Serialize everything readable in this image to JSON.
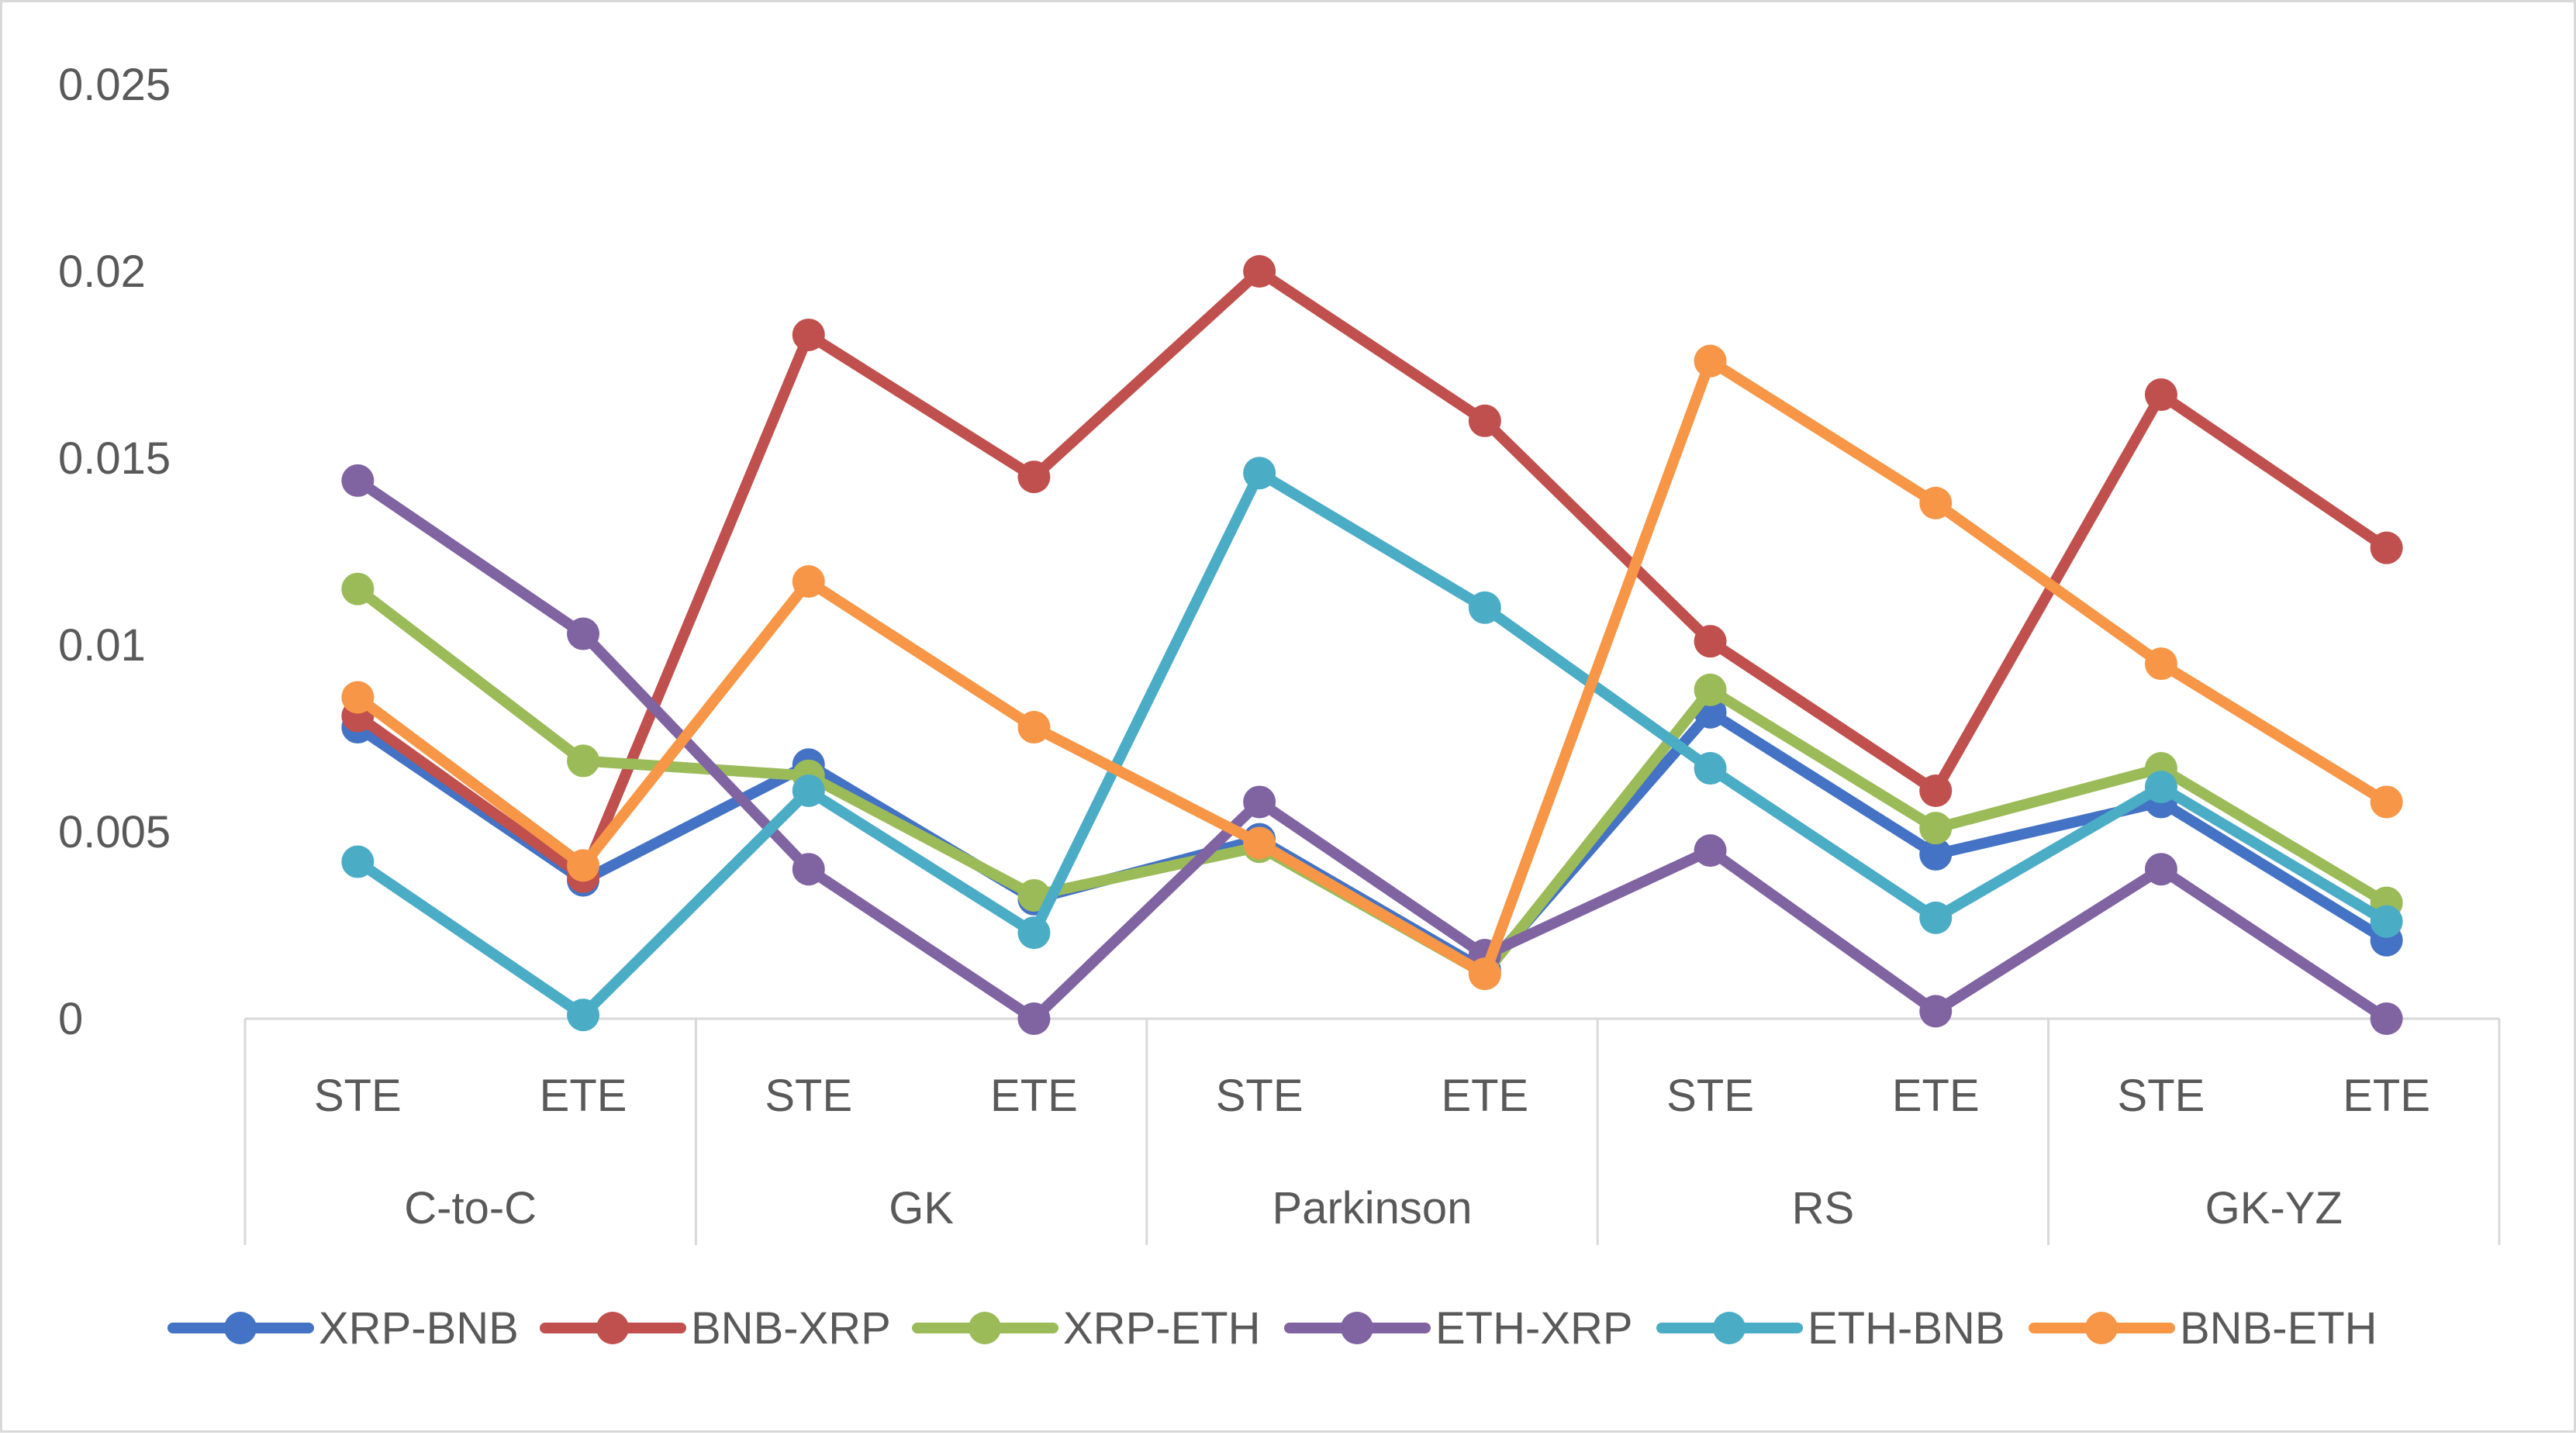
{
  "chart_data": {
    "type": "line",
    "title": "",
    "xlabel": "",
    "ylabel": "",
    "ylim": [
      0,
      0.025
    ],
    "yticks": [
      0,
      0.005,
      0.01,
      0.015,
      0.02,
      0.025
    ],
    "ytick_labels": [
      "0",
      "0.005",
      "0.01",
      "0.015",
      "0.02",
      "0.025"
    ],
    "grid": false,
    "legend_position": "bottom",
    "groups": [
      "C-to-C",
      "GK",
      "Parkinson",
      "RS",
      "GK-YZ"
    ],
    "subcategories": [
      "STE",
      "ETE"
    ],
    "categories": [
      "STE",
      "ETE",
      "STE",
      "ETE",
      "STE",
      "ETE",
      "STE",
      "ETE",
      "STE",
      "ETE"
    ],
    "series": [
      {
        "name": "XRP-BNB",
        "color": "#4472c4",
        "values": [
          0.0078,
          0.0037,
          0.0068,
          0.0032,
          0.0048,
          0.0013,
          0.0082,
          0.0044,
          0.0058,
          0.0021
        ]
      },
      {
        "name": "BNB-XRP",
        "color": "#c0504d",
        "values": [
          0.0081,
          0.0038,
          0.0183,
          0.0145,
          0.02,
          0.016,
          0.0101,
          0.0061,
          0.0167,
          0.0126
        ]
      },
      {
        "name": "XRP-ETH",
        "color": "#9bbb59",
        "values": [
          0.0115,
          0.0069,
          0.0065,
          0.0033,
          0.0046,
          0.0012,
          0.0088,
          0.0051,
          0.0067,
          0.0031
        ]
      },
      {
        "name": "ETH-XRP",
        "color": "#8064a2",
        "values": [
          0.0144,
          0.0103,
          0.004,
          0.0,
          0.0058,
          0.0017,
          0.0045,
          0.0002,
          0.004,
          0.0
        ]
      },
      {
        "name": "ETH-BNB",
        "color": "#4bacc6",
        "values": [
          0.0042,
          0.0001,
          0.0061,
          0.0023,
          0.0146,
          0.011,
          0.0067,
          0.0027,
          0.0062,
          0.0026
        ]
      },
      {
        "name": "BNB-ETH",
        "color": "#f79646",
        "values": [
          0.0086,
          0.0041,
          0.0117,
          0.0078,
          0.0047,
          0.0012,
          0.0176,
          0.0138,
          0.0095,
          0.0058
        ]
      }
    ]
  }
}
